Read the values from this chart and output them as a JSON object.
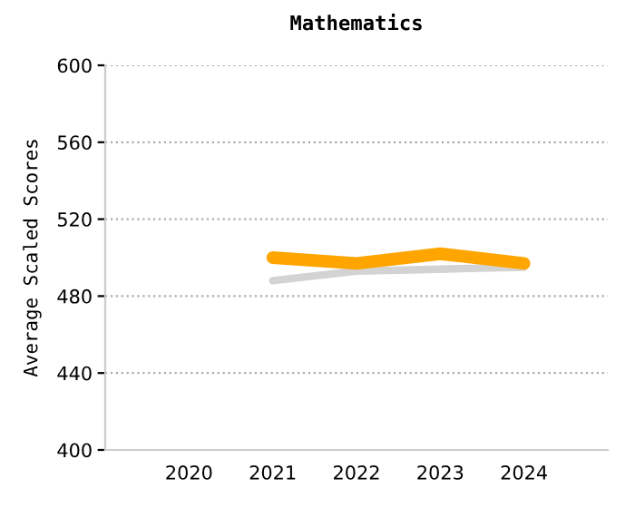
{
  "chart_data": {
    "type": "line",
    "title": "Mathematics",
    "ylabel": "Average Scaled Scores",
    "categories": [
      "2020",
      "2021",
      "2022",
      "2023",
      "2024"
    ],
    "series": [
      {
        "color": "#d3d3d3",
        "values": [
          null,
          488,
          493,
          494,
          495
        ]
      },
      {
        "color": "#ffa500",
        "values": [
          null,
          500,
          497,
          502,
          497
        ]
      }
    ],
    "ylim": [
      400,
      600
    ],
    "yticks": [
      400,
      440,
      480,
      520,
      560,
      600
    ],
    "grid": "y",
    "legend": false,
    "marker": "none",
    "line_style": "solid"
  }
}
